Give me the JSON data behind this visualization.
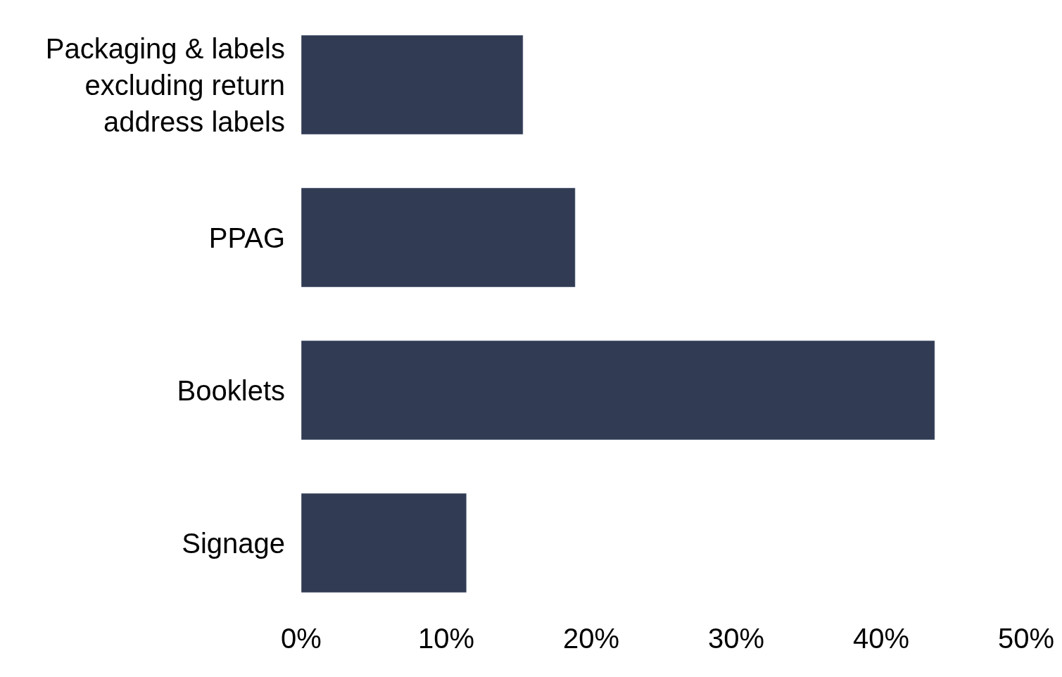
{
  "chart_data": {
    "type": "bar",
    "orientation": "horizontal",
    "categories": [
      "Packaging & labels excluding return address labels",
      "PPAG",
      "Booklets",
      "Signage"
    ],
    "values": [
      15.3,
      18.9,
      43.7,
      11.4
    ],
    "color": "#313b53",
    "xlim": [
      0,
      50
    ],
    "xticks": [
      {
        "value": 0,
        "label": "0%"
      },
      {
        "value": 10,
        "label": "10%"
      },
      {
        "value": 20,
        "label": "20%"
      },
      {
        "value": 30,
        "label": "30%"
      },
      {
        "value": 40,
        "label": "40%"
      },
      {
        "value": 50,
        "label": "50%"
      }
    ],
    "legend": false
  }
}
